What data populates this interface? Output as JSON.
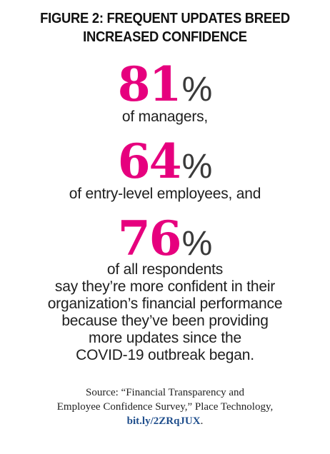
{
  "colors": {
    "accent": "#e6007e",
    "text": "#1e1e1e",
    "link": "#1f4e8c"
  },
  "figure": {
    "title_line1": "FIGURE 2: FREQUENT UPDATES BREED",
    "title_line2": "INCREASED CONFIDENCE",
    "stats": [
      {
        "value": "81",
        "percent_sign": "%",
        "caption": "of managers,"
      },
      {
        "value": "64",
        "percent_sign": "%",
        "caption": "of entry-level employees, and"
      },
      {
        "value": "76",
        "percent_sign": "%",
        "caption": "of all respondents"
      }
    ],
    "body_lines": [
      "say they’re more confident in their",
      "organization’s financial performance",
      "because they’ve been providing",
      "more updates since the",
      "COVID-19 outbreak began."
    ],
    "source_line1": "Source: “Financial Transparency and",
    "source_line2_text": "Employee Confidence Survey,” Place Technology,",
    "source_link": "bit.ly/2ZRqJUX",
    "source_link_end": "."
  }
}
